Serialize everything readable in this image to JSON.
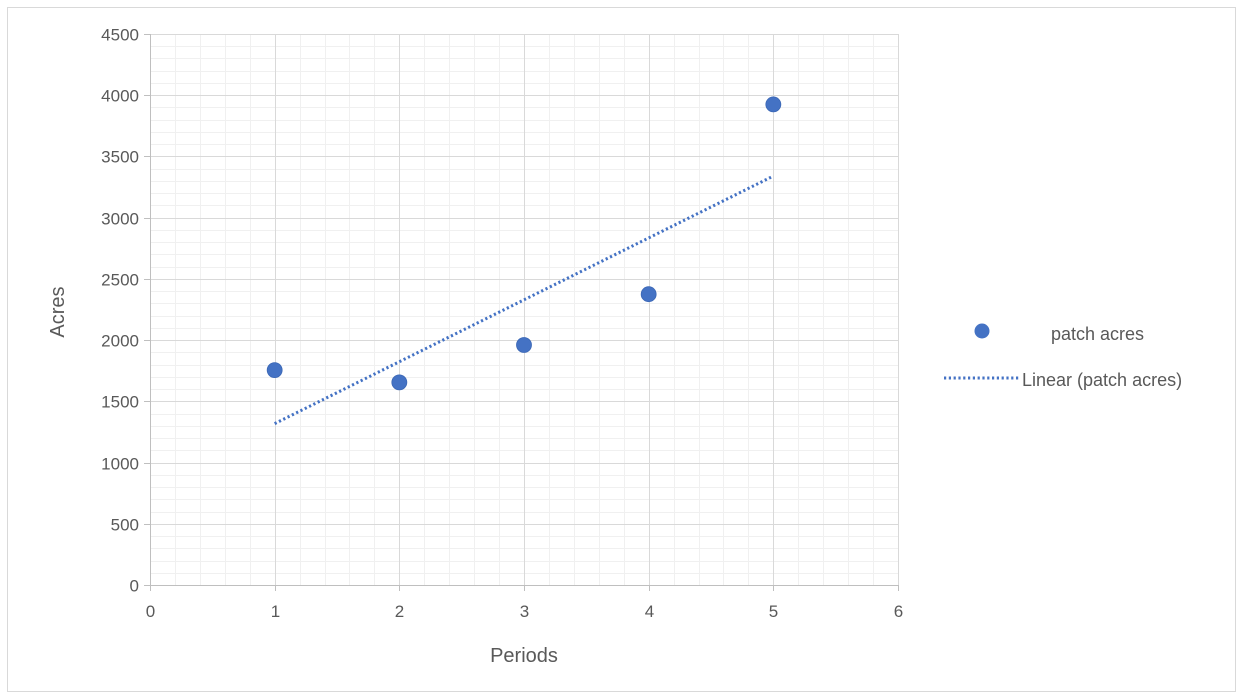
{
  "chart_data": {
    "type": "scatter",
    "title": "",
    "xlabel": "Periods",
    "ylabel": "Acres",
    "xlim": [
      0,
      6
    ],
    "ylim": [
      0,
      4500
    ],
    "x_ticks": [
      0,
      1,
      2,
      3,
      4,
      5,
      6
    ],
    "y_ticks": [
      0,
      500,
      1000,
      1500,
      2000,
      2500,
      3000,
      3500,
      4000,
      4500
    ],
    "x_tick_labels": [
      "0",
      "1",
      "2",
      "3",
      "4",
      "5",
      "6"
    ],
    "y_tick_labels": [
      "0",
      "500",
      "1000",
      "1500",
      "2000",
      "2500",
      "3000",
      "3500",
      "4000",
      "4500"
    ],
    "grid": true,
    "minor_grid": true,
    "legend_position": "right",
    "series": [
      {
        "name": "patch acres",
        "type": "scatter",
        "color": "#4472C4",
        "x": [
          1,
          2,
          3,
          4,
          5
        ],
        "y": [
          1755,
          1655,
          1960,
          2375,
          3925
        ]
      },
      {
        "name": "Linear (patch acres)",
        "type": "trendline",
        "style": "dotted",
        "color": "#4472C4",
        "x": [
          1,
          5
        ],
        "y": [
          1318,
          3340
        ]
      }
    ]
  }
}
